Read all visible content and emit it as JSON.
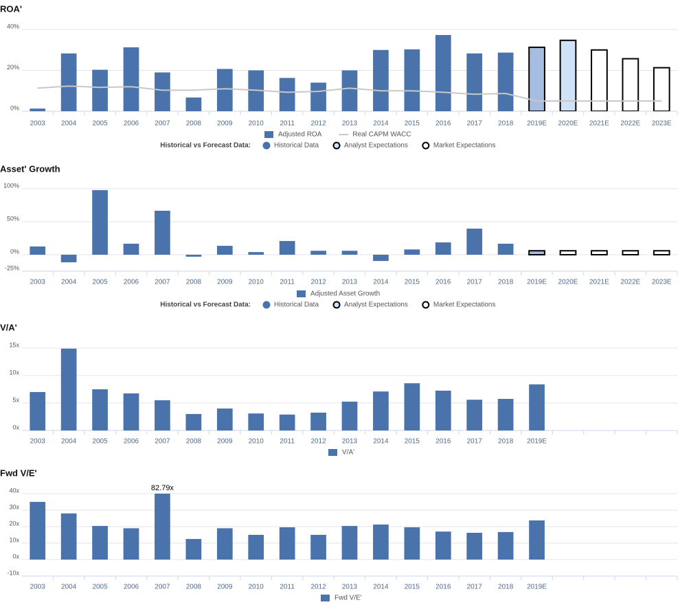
{
  "chart_data": [
    {
      "type": "bar",
      "title": "ROA'",
      "categories": [
        "2003",
        "2004",
        "2005",
        "2006",
        "2007",
        "2008",
        "2009",
        "2010",
        "2011",
        "2012",
        "2013",
        "2014",
        "2015",
        "2016",
        "2017",
        "2018",
        "2019E",
        "2020E",
        "2021E",
        "2022E",
        "2023E"
      ],
      "series": [
        {
          "name": "Adjusted ROA",
          "color": "#4a72ab",
          "values": [
            1.3,
            28.3,
            20.3,
            31.3,
            19,
            6.7,
            20.7,
            20,
            16.3,
            14,
            20,
            30,
            30.3,
            37.3,
            28.3,
            28.7,
            31.3,
            34.7,
            30,
            25.7,
            21.3
          ],
          "bar_fills": [
            "#4a72ab",
            "#4a72ab",
            "#4a72ab",
            "#4a72ab",
            "#4a72ab",
            "#4a72ab",
            "#4a72ab",
            "#4a72ab",
            "#4a72ab",
            "#4a72ab",
            "#4a72ab",
            "#4a72ab",
            "#4a72ab",
            "#4a72ab",
            "#4a72ab",
            "#4a72ab",
            "#a5bde0",
            "#cfe2f8",
            "#ffffff",
            "#ffffff",
            "#ffffff"
          ],
          "bar_strokes": [
            null,
            null,
            null,
            null,
            null,
            null,
            null,
            null,
            null,
            null,
            null,
            null,
            null,
            null,
            null,
            null,
            "#000000",
            "#000000",
            "#000000",
            "#000000",
            "#000000"
          ]
        },
        {
          "name": "Real CAPM WACC",
          "type": "line",
          "color": "#c8c8c8",
          "values": [
            11.3,
            12.3,
            11.7,
            12,
            10.3,
            10.3,
            11,
            10.3,
            9.3,
            9.7,
            11.3,
            10,
            10,
            9.3,
            8.3,
            8.7,
            5,
            5,
            5,
            5,
            5
          ]
        }
      ],
      "ylim": [
        0,
        40
      ],
      "yticks": [
        {
          "value": 0,
          "label": "0%"
        },
        {
          "value": 20,
          "label": "20%"
        },
        {
          "value": 40,
          "label": "40%"
        }
      ],
      "grid": true,
      "forecast_legend": {
        "title": "Historical vs Forecast Data:",
        "items": [
          {
            "label": "Historical Data",
            "fill": "#4a72ab",
            "stroke": "#4a72ab"
          },
          {
            "label": "Analyst Expectations",
            "fill": "#cfe2f8",
            "stroke": "#000000"
          },
          {
            "label": "Market Expectations",
            "fill": "#ffffff",
            "stroke": "#000000"
          }
        ]
      }
    },
    {
      "type": "bar",
      "title": "Asset' Growth",
      "categories": [
        "2003",
        "2004",
        "2005",
        "2006",
        "2007",
        "2008",
        "2009",
        "2010",
        "2011",
        "2012",
        "2013",
        "2014",
        "2015",
        "2016",
        "2017",
        "2018",
        "2019E",
        "2020E",
        "2021E",
        "2022E",
        "2023E"
      ],
      "series": [
        {
          "name": "Adjusted Asset Growth",
          "color": "#4a72ab",
          "values": [
            12.5,
            -11.5,
            98,
            16.7,
            66.7,
            -3,
            13.5,
            4,
            20.8,
            6,
            6,
            -9.5,
            8,
            18.7,
            39.6,
            16.7,
            6,
            6,
            6,
            6,
            6
          ],
          "bar_fills": [
            "#4a72ab",
            "#4a72ab",
            "#4a72ab",
            "#4a72ab",
            "#4a72ab",
            "#4a72ab",
            "#4a72ab",
            "#4a72ab",
            "#4a72ab",
            "#4a72ab",
            "#4a72ab",
            "#4a72ab",
            "#4a72ab",
            "#4a72ab",
            "#4a72ab",
            "#4a72ab",
            "#a5bde0",
            "#ffffff",
            "#ffffff",
            "#ffffff",
            "#ffffff"
          ],
          "bar_strokes": [
            null,
            null,
            null,
            null,
            null,
            null,
            null,
            null,
            null,
            null,
            null,
            null,
            null,
            null,
            null,
            null,
            "#000000",
            "#000000",
            "#000000",
            "#000000",
            "#000000"
          ]
        }
      ],
      "ylim": [
        -25,
        100
      ],
      "yticks": [
        {
          "value": -25,
          "label": "-25%"
        },
        {
          "value": 0,
          "label": "0%"
        },
        {
          "value": 50,
          "label": "50%"
        },
        {
          "value": 100,
          "label": "100%"
        }
      ],
      "grid": true,
      "forecast_legend": {
        "title": "Historical vs Forecast Data:",
        "items": [
          {
            "label": "Historical Data",
            "fill": "#4a72ab",
            "stroke": "#4a72ab"
          },
          {
            "label": "Analyst Expectations",
            "fill": "#cfe2f8",
            "stroke": "#000000"
          },
          {
            "label": "Market Expectations",
            "fill": "#ffffff",
            "stroke": "#000000"
          }
        ]
      }
    },
    {
      "type": "bar",
      "title": "V/A'",
      "categories": [
        "2003",
        "2004",
        "2005",
        "2006",
        "2007",
        "2008",
        "2009",
        "2010",
        "2011",
        "2012",
        "2013",
        "2014",
        "2015",
        "2016",
        "2017",
        "2018",
        "2019E",
        null,
        null,
        null,
        null
      ],
      "series": [
        {
          "name": "V/A'",
          "color": "#4a72ab",
          "values": [
            7,
            14.9,
            7.5,
            6.75,
            5.5,
            3,
            4,
            3.1,
            2.9,
            3.25,
            5.25,
            7.1,
            8.6,
            7.25,
            5.6,
            5.75,
            8.4,
            null,
            null,
            null,
            null
          ]
        }
      ],
      "ylim": [
        0,
        15
      ],
      "yticks": [
        {
          "value": 0,
          "label": "0x"
        },
        {
          "value": 5,
          "label": "5x"
        },
        {
          "value": 10,
          "label": "10x"
        },
        {
          "value": 15,
          "label": "15x"
        }
      ],
      "grid": true
    },
    {
      "type": "bar",
      "title": "Fwd V/E'",
      "categories": [
        "2003",
        "2004",
        "2005",
        "2006",
        "2007",
        "2008",
        "2009",
        "2010",
        "2011",
        "2012",
        "2013",
        "2014",
        "2015",
        "2016",
        "2017",
        "2018",
        "2019E",
        null,
        null,
        null,
        null
      ],
      "series": [
        {
          "name": "Fwd V/E'",
          "color": "#4a72ab",
          "values": [
            35,
            28,
            20.4,
            19,
            82.79,
            12.5,
            19,
            15,
            19.6,
            15,
            20.4,
            21.25,
            19.6,
            17,
            16.25,
            16.7,
            23.75,
            null,
            null,
            null,
            null
          ],
          "value_labels": [
            null,
            null,
            null,
            null,
            "82.79x",
            null,
            null,
            null,
            null,
            null,
            null,
            null,
            null,
            null,
            null,
            null,
            null,
            null,
            null,
            null,
            null
          ]
        }
      ],
      "ylim": [
        -10,
        40
      ],
      "yticks": [
        {
          "value": -10,
          "label": "-10x"
        },
        {
          "value": 0,
          "label": "0x"
        },
        {
          "value": 10,
          "label": "10x"
        },
        {
          "value": 20,
          "label": "20x"
        },
        {
          "value": 30,
          "label": "30x"
        },
        {
          "value": 40,
          "label": "40x"
        }
      ],
      "grid": true
    }
  ]
}
